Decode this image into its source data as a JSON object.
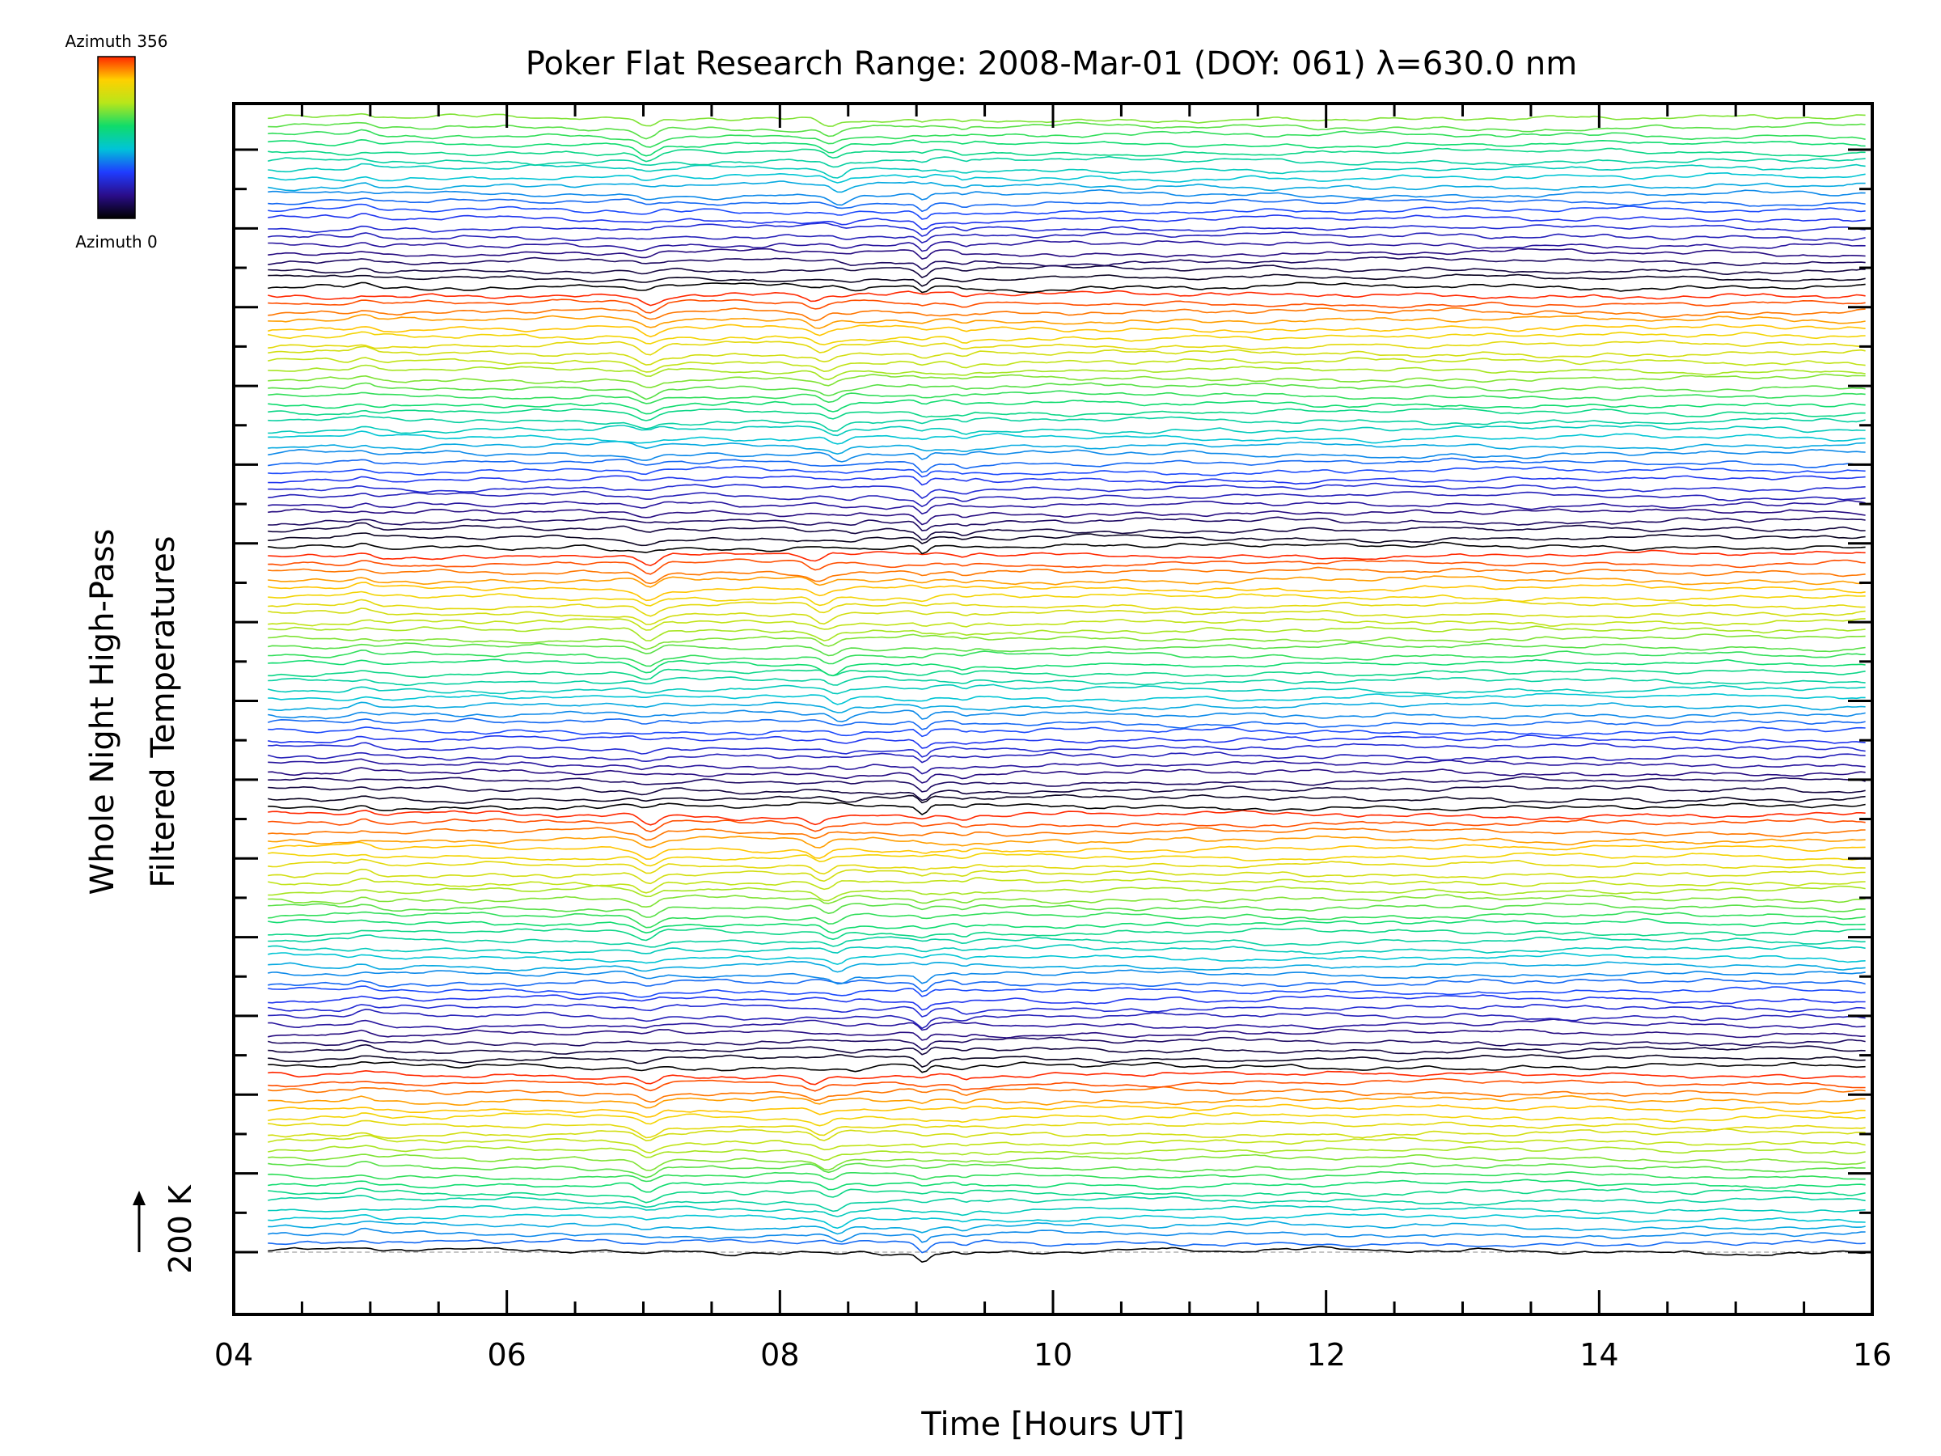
{
  "chart_data": {
    "type": "line",
    "title": "Poker Flat Research Range: 2008-Mar-01 (DOY: 061) λ=630.0 nm",
    "xlabel": "Time [Hours UT]",
    "ylabel_line1": "Whole Night High-Pass",
    "ylabel_line2": "Filtered Temperatures",
    "xlim": [
      4,
      16
    ],
    "x_ticks": [
      "04",
      "06",
      "08",
      "10",
      "12",
      "14",
      "16"
    ],
    "x_tick_values": [
      4,
      6,
      8,
      10,
      12,
      14,
      16
    ],
    "x_minor_step": 0.5,
    "trace_time_range": [
      4.25,
      15.95
    ],
    "trace_count": 136,
    "trace_azimuth_range": [
      0,
      356
    ],
    "y_major_tick_count": 15,
    "y_minor_per_major": 2,
    "scale_bar_label": "200 K",
    "colorbar": {
      "top_label": "Azimuth 356",
      "bottom_label": "Azimuth 0",
      "colormap": "rainbow",
      "stops": [
        "#000000",
        "#2a0d8a",
        "#1f3cff",
        "#00c4d8",
        "#10dc6a",
        "#b8e61a",
        "#ffd000",
        "#ff2800"
      ]
    },
    "features": [
      {
        "type": "dip",
        "time": 7.0
      },
      {
        "type": "dip",
        "time": 8.55
      },
      {
        "type": "dip",
        "time": 9.05
      }
    ],
    "grid": false,
    "legend": "colorbar top-left",
    "baseline_color": "#b0b0b0"
  }
}
